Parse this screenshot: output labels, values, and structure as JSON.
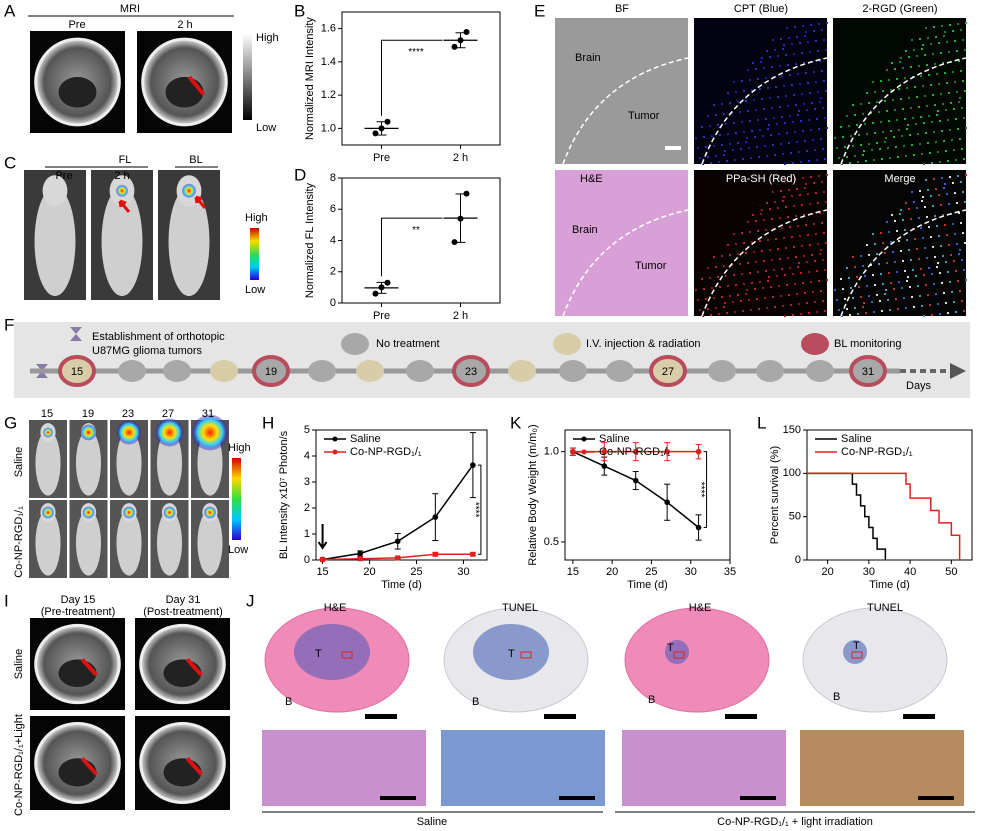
{
  "panel_labels": [
    "A",
    "B",
    "C",
    "D",
    "E",
    "F",
    "G",
    "H",
    "K",
    "L",
    "I",
    "J"
  ],
  "panel_a": {
    "title": "MRI",
    "columns": [
      "Pre",
      "2 h"
    ],
    "scale": [
      "High",
      "Low"
    ]
  },
  "panel_c": {
    "groups": [
      "FL",
      "BL"
    ],
    "columns": [
      "Pre",
      "2 h"
    ],
    "scale": [
      "High",
      "Low"
    ]
  },
  "panel_e": {
    "labels": [
      "BF",
      "CPT (Blue)",
      "2-RGD (Green)",
      "H&E",
      "PPa-SH (Red)",
      "Merge"
    ],
    "regions": [
      "Brain",
      "Tumor"
    ]
  },
  "panel_f": {
    "establishment": [
      "Establishment of orthotopic",
      "U87MG glioma tumors"
    ],
    "legend": [
      "No treatment",
      "I.V. injection & radiation",
      "BL monitoring"
    ],
    "days": [
      "15",
      "19",
      "23",
      "27",
      "31"
    ],
    "axis": "Days"
  },
  "panel_g": {
    "days": [
      "15",
      "19",
      "23",
      "27",
      "31"
    ],
    "rows": [
      "Saline",
      "Co-NP-RGD₁/₁"
    ],
    "scale": [
      "High",
      "Low"
    ]
  },
  "panel_i": {
    "columns": [
      [
        "Day 15",
        "(Pre-treatment)"
      ],
      [
        "Day 31",
        "(Post-treatment)"
      ]
    ],
    "rows": [
      "Saline",
      "Co-NP-RGD₁/₁+Light"
    ]
  },
  "panel_j": {
    "columns": [
      "H&E",
      "TUNEL",
      "H&E",
      "TUNEL"
    ],
    "regions": [
      "T",
      "B"
    ],
    "groups": [
      "Saline",
      "Co-NP-RGD₁/₁ + light irradiation"
    ]
  },
  "chart_data": [
    {
      "type": "dot",
      "categories": [
        "Pre",
        "2 h"
      ],
      "ylabel": "Normalized MRI Intensity",
      "ylim": [
        0.9,
        1.7
      ],
      "yticks": [
        {
          "value": 1,
          "label": "1.0"
        },
        {
          "value": 1.2,
          "label": "1.2"
        },
        {
          "value": 1.4,
          "label": "1.4"
        },
        {
          "value": 1.6,
          "label": "1.6"
        }
      ],
      "points": [
        [
          0.97,
          1.0,
          1.04
        ],
        [
          1.49,
          1.53,
          1.58
        ]
      ],
      "means": [
        1.0,
        1.53
      ],
      "errors": [
        0.04,
        0.045
      ],
      "annotation": "****",
      "color": "#000000"
    },
    {
      "type": "dot",
      "categories": [
        "Pre",
        "2 h"
      ],
      "ylabel": "Normalized FL Intensity",
      "ylim": [
        0,
        8
      ],
      "yticks": [
        0,
        2,
        4,
        6,
        8
      ],
      "points": [
        [
          0.6,
          1.0,
          1.3
        ],
        [
          3.9,
          5.4,
          7.0
        ]
      ],
      "means": [
        0.97,
        5.43
      ],
      "errors": [
        0.35,
        1.55
      ],
      "annotation": "**",
      "color": "#000000"
    },
    {
      "type": "line",
      "xlabel": "Time (d)",
      "ylabel": "BL Intensity x10⁷ Photon/s",
      "x": [
        15,
        19,
        23,
        27,
        31
      ],
      "xlim": [
        14.3,
        32.5
      ],
      "xticks": [
        15,
        20,
        25,
        30
      ],
      "ylim": [
        0,
        5
      ],
      "yticks": [
        0,
        1,
        2,
        3,
        4,
        5
      ],
      "annotation": "****",
      "series": [
        {
          "name": "Saline",
          "color": "#000000",
          "marker": "circle",
          "values": [
            0.02,
            0.25,
            0.72,
            1.65,
            3.65
          ],
          "errors": [
            0.02,
            0.1,
            0.3,
            0.9,
            1.25
          ]
        },
        {
          "name": "Co-NP-RGD₁/₁",
          "color": "#e0201b",
          "marker": "square",
          "values": [
            0.02,
            0.05,
            0.08,
            0.22,
            0.22
          ],
          "errors": [
            0.01,
            0.02,
            0.03,
            0.06,
            0.05
          ]
        }
      ]
    },
    {
      "type": "line",
      "xlabel": "Time (d)",
      "ylabel": "Relative Body Weight (m/m₀)",
      "x": [
        15,
        19,
        23,
        27,
        31
      ],
      "xlim": [
        14,
        35
      ],
      "xticks": [
        15,
        20,
        25,
        30,
        35
      ],
      "ylim": [
        0.4,
        1.12
      ],
      "yticks": [
        0.5,
        {
          "value": 1,
          "label": "1.0"
        }
      ],
      "annotation": "****",
      "series": [
        {
          "name": "Saline",
          "color": "#000000",
          "marker": "circle",
          "values": [
            1.0,
            0.92,
            0.84,
            0.72,
            0.58
          ],
          "errors": [
            0.02,
            0.05,
            0.05,
            0.1,
            0.07
          ]
        },
        {
          "name": "Co-NP-RGD₁/₁",
          "color": "#e0201b",
          "marker": "circle",
          "values": [
            1.0,
            1.0,
            1.0,
            1.0,
            1.0
          ],
          "errors": [
            0.02,
            0.05,
            0.05,
            0.05,
            0.04
          ]
        }
      ]
    },
    {
      "type": "step",
      "xlabel": "Time (d)",
      "ylabel": "Percent survival (%)",
      "xlim": [
        15,
        55
      ],
      "xticks": [
        20,
        30,
        40,
        50
      ],
      "ylim": [
        0,
        150
      ],
      "yticks": [
        0,
        50,
        100,
        150
      ],
      "series": [
        {
          "name": "Saline",
          "color": "#000000",
          "x": [
            15,
            26,
            27,
            28,
            29,
            30,
            31,
            32,
            34
          ],
          "values": [
            100,
            87.5,
            75,
            62.5,
            50,
            37.5,
            25,
            12.5,
            0
          ]
        },
        {
          "name": "Co-NP-RGD₁/₁",
          "color": "#e0201b",
          "x": [
            15,
            39,
            40,
            45,
            47,
            50,
            52
          ],
          "values": [
            100,
            87.5,
            71.4,
            57.1,
            42.9,
            28.6,
            0
          ]
        }
      ]
    }
  ]
}
